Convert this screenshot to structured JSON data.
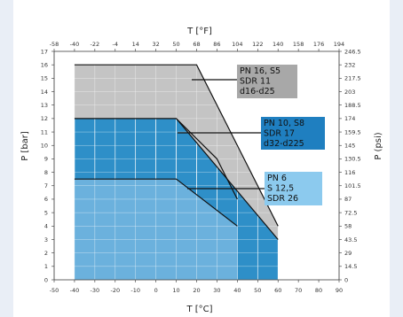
{
  "chart_data": {
    "type": "area",
    "bottom_axis": {
      "label": "T [°C]",
      "ticks": [
        "-50",
        "-40",
        "-30",
        "-20",
        "-10",
        "0",
        "10",
        "20",
        "30",
        "40",
        "50",
        "60",
        "70",
        "80",
        "90"
      ],
      "range": [
        -50,
        90
      ]
    },
    "top_axis": {
      "label": "T [°F]",
      "ticks": [
        "-58",
        "-40",
        "-22",
        "-4",
        "14",
        "32",
        "50",
        "68",
        "86",
        "104",
        "122",
        "140",
        "158",
        "176",
        "194"
      ]
    },
    "left_axis": {
      "label": "P [bar]",
      "ticks": [
        "0",
        "1",
        "2",
        "3",
        "4",
        "5",
        "6",
        "7",
        "8",
        "9",
        "10",
        "11",
        "12",
        "13",
        "14",
        "15",
        "16",
        "17"
      ],
      "range": [
        0,
        17
      ]
    },
    "right_axis": {
      "label": "P (psi)",
      "ticks": [
        "0",
        "14.5",
        "29",
        "43.5",
        "58",
        "72.5",
        "87",
        "101.5",
        "116",
        "130.5",
        "145",
        "159.5",
        "174",
        "188.5",
        "203",
        "217.5",
        "232",
        "246.5"
      ]
    },
    "series": [
      {
        "name": "PN 16, S5 SDR 11 d16-d25",
        "lines": [
          "PN 16, S5",
          "SDR 11",
          "d16-d25"
        ],
        "color": "#c4c4c4",
        "box_color": "#a8a8a8",
        "points": [
          [
            -40,
            16
          ],
          [
            20,
            16
          ],
          [
            60,
            4
          ]
        ]
      },
      {
        "name": "PN 10, S8 SDR 17 d32-d225",
        "lines": [
          "PN 10, S8",
          "SDR 17",
          "d32-d225"
        ],
        "color": "#2e8fc8",
        "box_color": "#1f7fc0",
        "points": [
          [
            -40,
            12
          ],
          [
            10,
            12
          ],
          [
            60,
            3
          ]
        ],
        "inner_curve": [
          [
            10,
            12
          ],
          [
            30,
            9
          ],
          [
            40,
            6
          ]
        ]
      },
      {
        "name": "PN 6 S 12,5 SDR 26",
        "lines": [
          "PN 6",
          "S 12,5",
          "SDR 26"
        ],
        "color": "#6fb3de",
        "box_color": "#8ccaee",
        "points": [
          [
            -40,
            7.5
          ],
          [
            10,
            7.5
          ],
          [
            40,
            4
          ]
        ]
      }
    ],
    "bar_columns": [
      -40,
      -30,
      -20,
      -10,
      0,
      10,
      20,
      30,
      40,
      50
    ],
    "grid": true
  }
}
